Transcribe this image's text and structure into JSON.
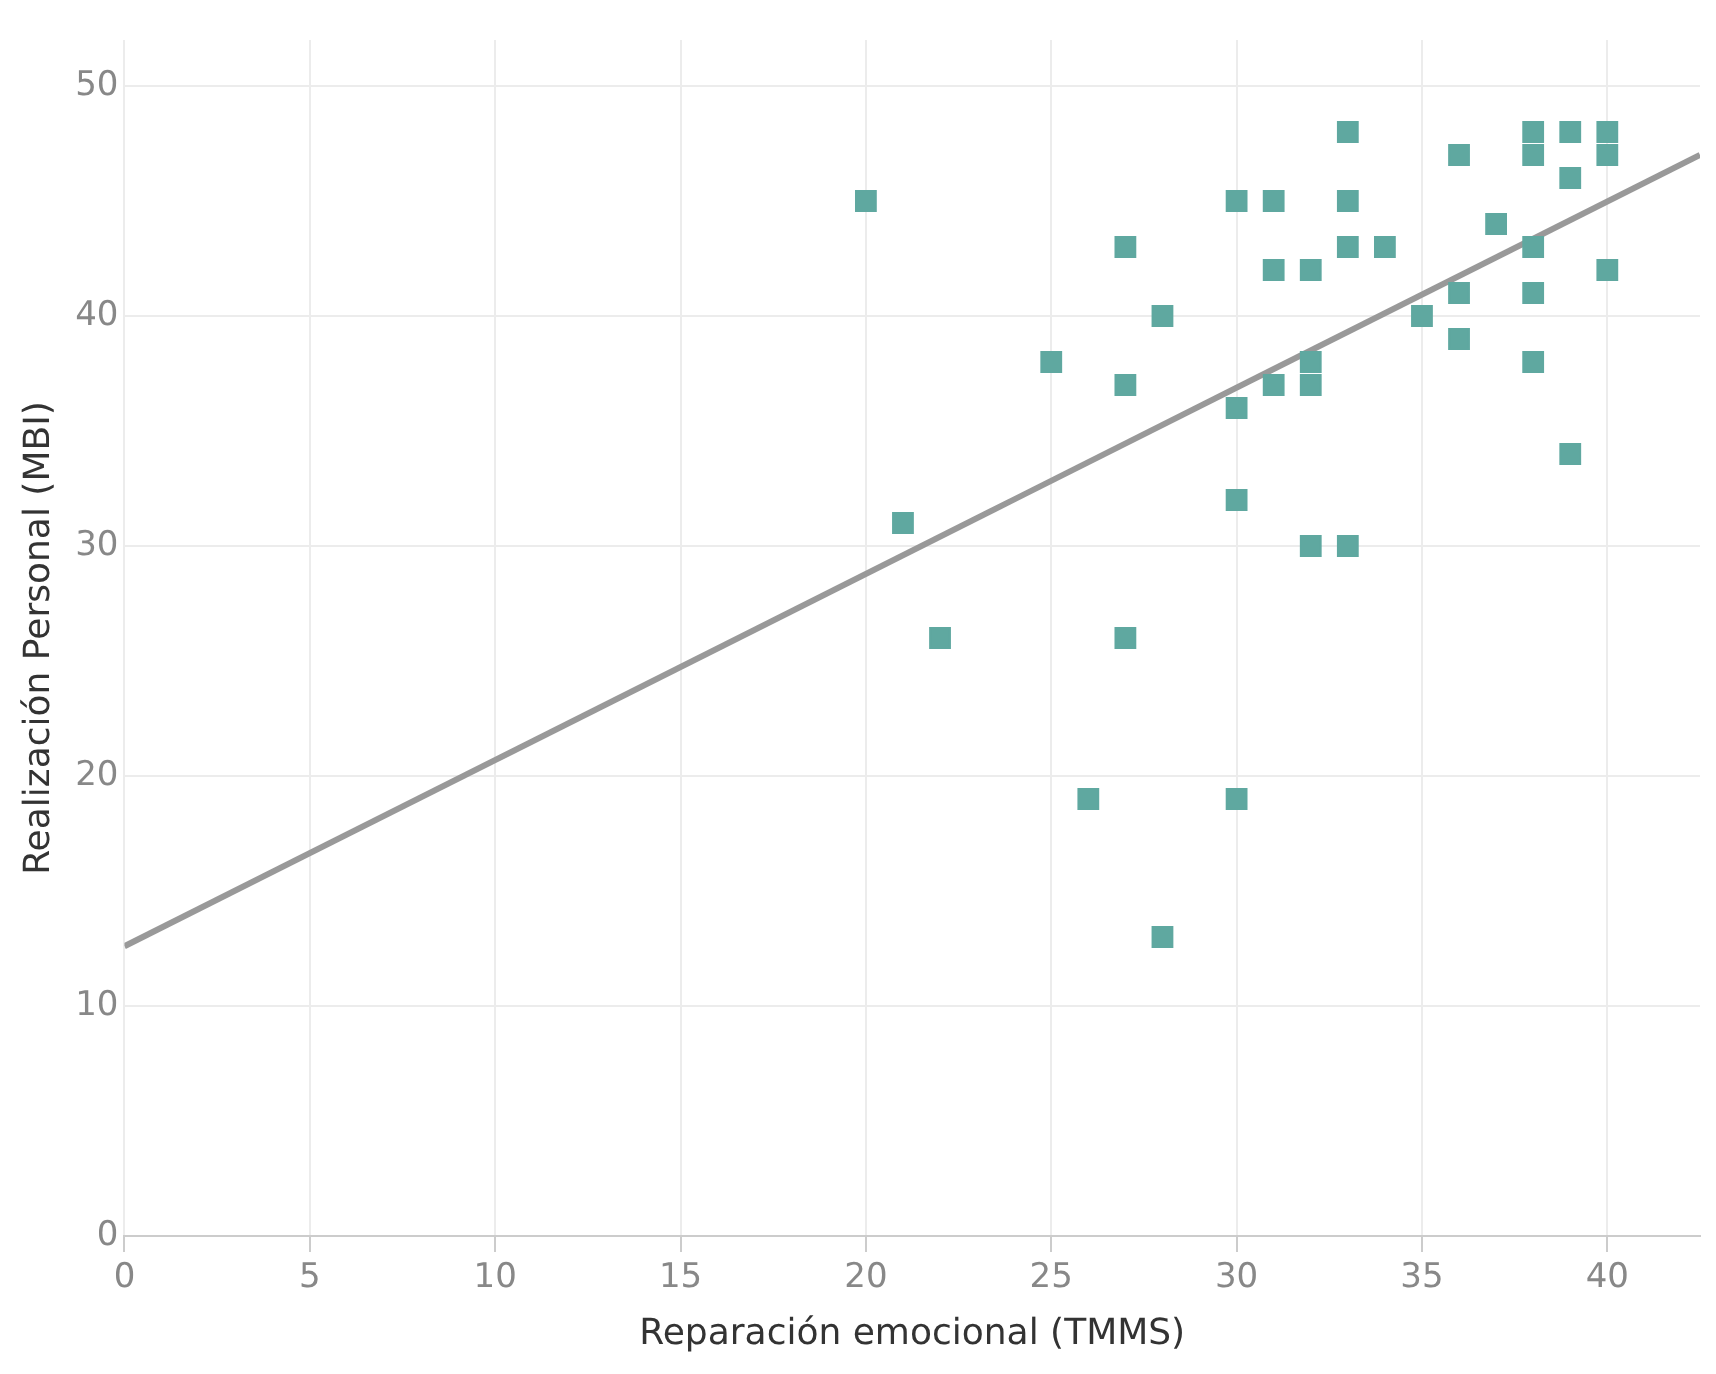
{
  "chart_data": {
    "type": "scatter",
    "xlabel": "Reparación emocional (TMMS)",
    "ylabel": "Realización Personal (MBI)",
    "xlim": [
      0,
      42.5
    ],
    "xticks": [
      0,
      5,
      10,
      15,
      20,
      25,
      30,
      35,
      40
    ],
    "ylim": [
      0,
      52
    ],
    "yticks": [
      0,
      10,
      20,
      30,
      40,
      50
    ],
    "grid": true,
    "series": [
      {
        "marker": "square",
        "color": "#5fa8a0",
        "x": [
          20,
          21,
          22,
          25,
          26,
          27,
          27,
          27,
          28,
          28,
          30,
          30,
          30,
          30,
          31,
          31,
          31,
          32,
          32,
          32,
          32,
          33,
          33,
          33,
          33,
          34,
          35,
          36,
          36,
          36,
          37,
          38,
          38,
          38,
          38,
          38,
          39,
          39,
          39,
          40,
          40,
          40
        ],
        "values": [
          45,
          31,
          26,
          38,
          19,
          43,
          37,
          26,
          40,
          13,
          45,
          36,
          32,
          19,
          45,
          42,
          37,
          42,
          38,
          37,
          30,
          48,
          45,
          43,
          30,
          43,
          40,
          47,
          41,
          39,
          44,
          48,
          47,
          43,
          41,
          38,
          48,
          46,
          34,
          48,
          47,
          42
        ]
      },
      {
        "type": "line",
        "marker": "none",
        "color": "#999999",
        "x": [
          0,
          42.5
        ],
        "values": [
          12.6,
          47.0
        ]
      }
    ]
  }
}
